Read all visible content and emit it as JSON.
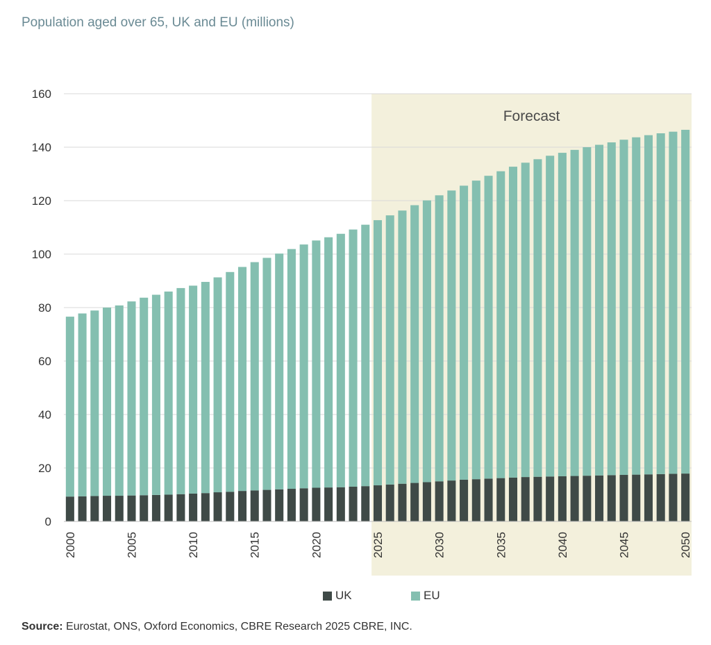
{
  "title": "Population aged over 65, UK and EU (millions)",
  "source_label": "Source:",
  "source_text": "Eurostat, ONS, Oxford Economics, CBRE Research  2025 CBRE, INC.",
  "colors": {
    "uk": "#3f4a47",
    "eu": "#84bfb0",
    "forecast_bg": "#f3f0dc",
    "grid": "#d9d9d9"
  },
  "chart_data": {
    "type": "bar",
    "stacked": true,
    "title": "Population aged over 65, UK and EU (millions)",
    "xlabel": "",
    "ylabel": "",
    "ylim": [
      0,
      160
    ],
    "yticks": [
      0,
      20,
      40,
      60,
      80,
      100,
      120,
      140,
      160
    ],
    "xtick_labels": [
      "2000",
      "2005",
      "2010",
      "2015",
      "2020",
      "2025",
      "2030",
      "2035",
      "2040",
      "2045",
      "2050"
    ],
    "grid": true,
    "legend_position": "bottom",
    "forecast": {
      "label": "Forecast",
      "from": 2025,
      "to": 2050
    },
    "categories": [
      2000,
      2001,
      2002,
      2003,
      2004,
      2005,
      2006,
      2007,
      2008,
      2009,
      2010,
      2011,
      2012,
      2013,
      2014,
      2015,
      2016,
      2017,
      2018,
      2019,
      2020,
      2021,
      2022,
      2023,
      2024,
      2025,
      2026,
      2027,
      2028,
      2029,
      2030,
      2031,
      2032,
      2033,
      2034,
      2035,
      2036,
      2037,
      2038,
      2039,
      2040,
      2041,
      2042,
      2043,
      2044,
      2045,
      2046,
      2047,
      2048,
      2049,
      2050
    ],
    "series": [
      {
        "name": "UK",
        "values": [
          9.3,
          9.4,
          9.5,
          9.6,
          9.6,
          9.7,
          9.8,
          9.9,
          10.0,
          10.2,
          10.4,
          10.6,
          10.9,
          11.1,
          11.4,
          11.6,
          11.8,
          12.0,
          12.2,
          12.4,
          12.6,
          12.7,
          12.8,
          13.0,
          13.2,
          13.5,
          13.8,
          14.1,
          14.4,
          14.7,
          15.0,
          15.3,
          15.6,
          15.8,
          16.0,
          16.2,
          16.4,
          16.6,
          16.7,
          16.8,
          16.9,
          17.0,
          17.1,
          17.2,
          17.3,
          17.4,
          17.5,
          17.6,
          17.7,
          17.8,
          17.9
        ]
      },
      {
        "name": "EU",
        "values": [
          67.3,
          68.4,
          69.4,
          70.4,
          71.2,
          72.6,
          73.9,
          74.9,
          76.0,
          77.1,
          77.8,
          79.0,
          80.4,
          82.2,
          83.8,
          85.4,
          86.8,
          88.2,
          89.7,
          91.2,
          92.5,
          93.6,
          94.8,
          96.2,
          97.8,
          99.2,
          100.7,
          102.2,
          103.9,
          105.4,
          107.0,
          108.5,
          110.0,
          111.7,
          113.3,
          114.8,
          116.3,
          117.6,
          118.8,
          120.0,
          121.0,
          122.0,
          122.9,
          123.7,
          124.5,
          125.4,
          126.2,
          126.9,
          127.5,
          128.0,
          128.6
        ]
      }
    ]
  },
  "legend": [
    {
      "label": "UK",
      "key": "uk"
    },
    {
      "label": "EU",
      "key": "eu"
    }
  ]
}
